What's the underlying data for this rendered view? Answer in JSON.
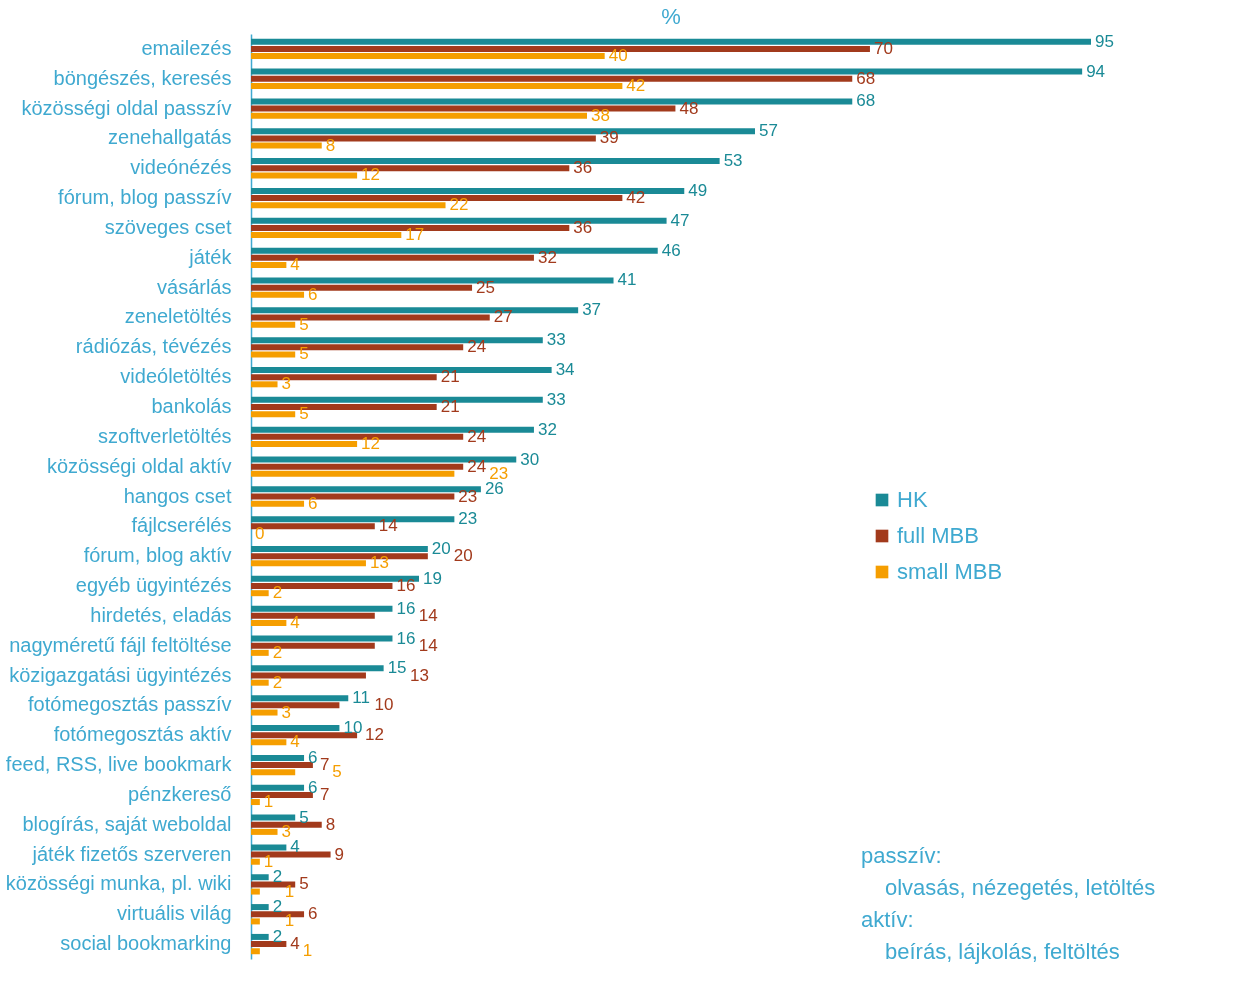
{
  "chart_data": {
    "type": "bar",
    "orientation": "horizontal",
    "title": "%",
    "categories": [
      "emailezés",
      "böngészés, keresés",
      "közösségi oldal passzív",
      "zenehallgatás",
      "videónézés",
      "fórum, blog passzív",
      "szöveges cset",
      "játék",
      "vásárlás",
      "zeneletöltés",
      "rádiózás, tévézés",
      "videóletöltés",
      "bankolás",
      "szoftverletöltés",
      "közösségi oldal aktív",
      "hangos cset",
      "fájlcserélés",
      "fórum, blog aktív",
      "egyéb ügyintézés",
      "hirdetés, eladás",
      "nagyméretű fájl feltöltése",
      "közigazgatási ügyintézés",
      "fotómegosztás passzív",
      "fotómegosztás aktív",
      "feed, RSS, live bookmark",
      "pénzkereső",
      "blogírás, saját weboldal",
      "játék fizetős szerveren",
      "közösségi munka, pl. wiki",
      "virtuális világ",
      "social bookmarking"
    ],
    "series": [
      {
        "name": "HK",
        "color": "#1a8a96",
        "values": [
          95,
          94,
          68,
          57,
          53,
          49,
          47,
          46,
          41,
          37,
          33,
          34,
          33,
          32,
          30,
          26,
          23,
          20,
          19,
          16,
          16,
          15,
          11,
          10,
          6,
          6,
          5,
          4,
          2,
          2,
          2
        ]
      },
      {
        "name": "full MBB",
        "color": "#a23a1c",
        "values": [
          70,
          68,
          48,
          39,
          36,
          42,
          36,
          32,
          25,
          27,
          24,
          21,
          21,
          24,
          24,
          23,
          14,
          20,
          16,
          14,
          14,
          13,
          10,
          12,
          7,
          7,
          8,
          9,
          5,
          6,
          4
        ]
      },
      {
        "name": "small MBB",
        "color": "#f59e00",
        "values": [
          40,
          42,
          38,
          8,
          12,
          22,
          17,
          4,
          6,
          5,
          5,
          3,
          5,
          12,
          23,
          6,
          0,
          13,
          2,
          4,
          2,
          2,
          3,
          4,
          5,
          1,
          3,
          1,
          1,
          1,
          1
        ]
      }
    ],
    "tick_labels": "y",
    "data_labels": true,
    "legend": "right",
    "grid": false,
    "annotations": [
      "passzív:",
      "olvasás, nézegetés, letöltés",
      "aktív:",
      "beírás, lájkolás, feltöltés"
    ]
  }
}
